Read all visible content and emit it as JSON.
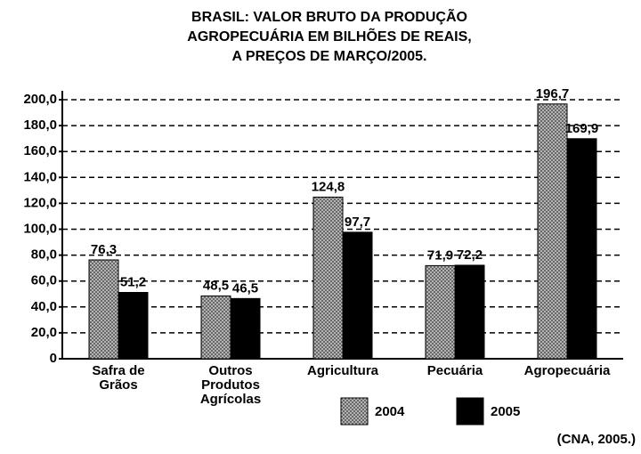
{
  "chart_data": {
    "type": "bar",
    "title": [
      "BRASIL: VALOR BRUTO DA PRODUÇÃO",
      "AGROPECUÁRIA EM BILHÕES DE REAIS,",
      "A PREÇOS DE MARÇO/2005."
    ],
    "categories": [
      "Safra de Grãos",
      "Outros Produtos Agrícolas",
      "Agricultura",
      "Pecuária",
      "Agropecuária"
    ],
    "series": [
      {
        "name": "2004",
        "color": "#a0a0a0",
        "values": [
          76.3,
          48.5,
          124.8,
          71.9,
          196.7
        ],
        "value_labels": [
          "76,3",
          "48,5",
          "124,8",
          "71,9",
          "196,7"
        ]
      },
      {
        "name": "2005",
        "color": "#000000",
        "values": [
          51.2,
          46.5,
          97.7,
          72.2,
          169.9
        ],
        "value_labels": [
          "51,2",
          "46,5",
          "97,7",
          "72,2",
          "169,9"
        ]
      }
    ],
    "ylim": [
      0,
      200
    ],
    "yticks": [
      0,
      {
        "value": 20,
        "label": "20,0"
      },
      {
        "value": 40,
        "label": "40,0"
      },
      {
        "value": 60,
        "label": "60,0"
      },
      {
        "value": 80,
        "label": "80,0"
      },
      {
        "value": 100,
        "label": "100,0"
      },
      {
        "value": 120,
        "label": "120,0"
      },
      {
        "value": 140,
        "label": "140,0"
      },
      {
        "value": 160,
        "label": "160,0"
      },
      {
        "value": 180,
        "label": "180,0"
      },
      {
        "value": 200,
        "label": "200,0"
      }
    ],
    "grid": true,
    "source": "(CNA, 2005.)"
  }
}
